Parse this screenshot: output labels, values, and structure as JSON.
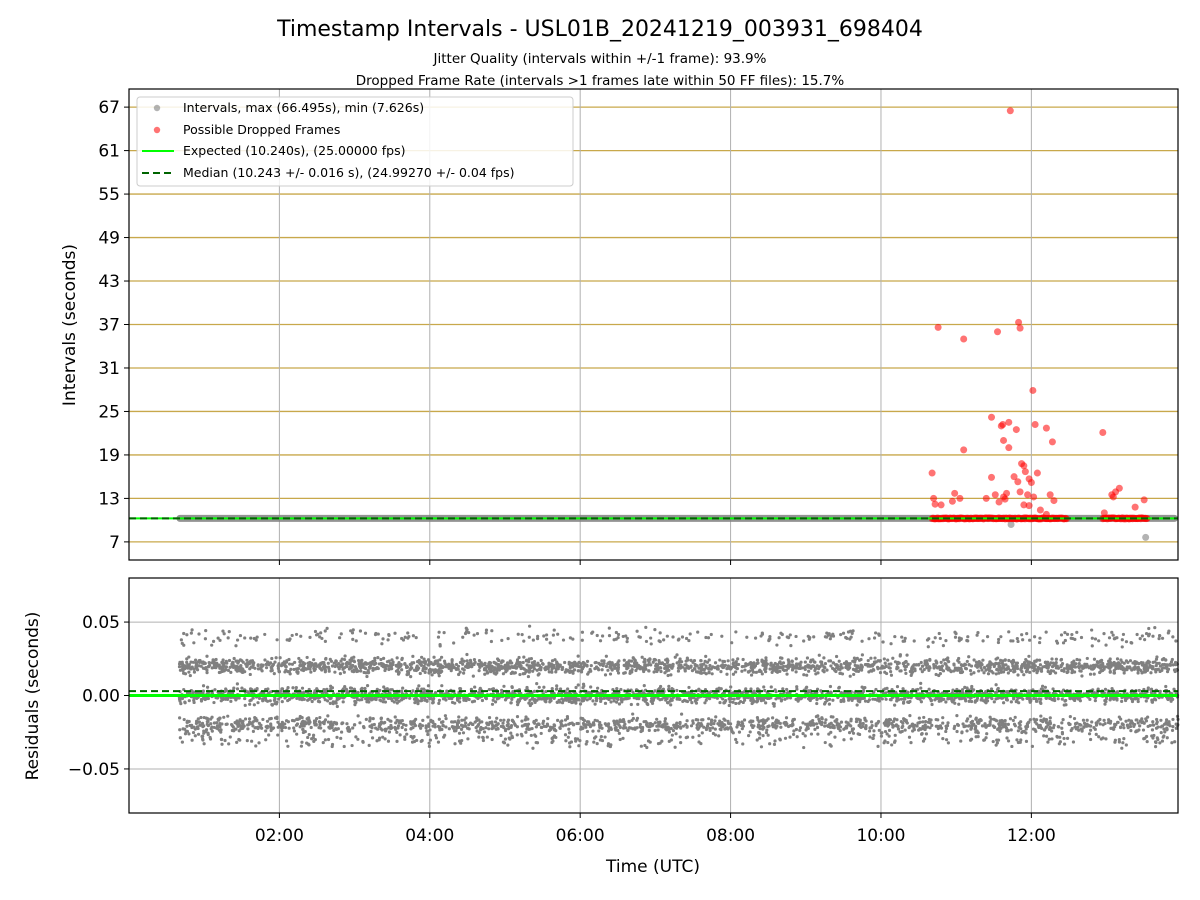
{
  "figure": {
    "title": "Timestamp Intervals - USL01B_20241219_003931_698404",
    "subtitle_1": "Jitter Quality (intervals within +/-1 frame): 93.9%",
    "subtitle_2": "Dropped Frame Rate (intervals >1 frames late within 50 FF files): 15.7%"
  },
  "colors": {
    "intervals": "#808080",
    "dropped": "#ff0000",
    "expected": "#00ff00",
    "median": "#006400",
    "top_grid": "#c8a84b",
    "x_grid": "#b0b0b0"
  },
  "chart_data": [
    {
      "type": "scatter",
      "panel": "top",
      "ylabel": "Intervals (seconds)",
      "ylim": [
        4.5,
        69.5
      ],
      "yticks": [
        7,
        13,
        19,
        25,
        31,
        37,
        43,
        49,
        55,
        61,
        67
      ],
      "ytick_labels": [
        "7",
        "13",
        "19",
        "25",
        "31",
        "37",
        "43",
        "49",
        "55",
        "61",
        "67"
      ],
      "xlim_hours": [
        0.0,
        13.95
      ],
      "xticks_hours": [
        2,
        4,
        6,
        8,
        10,
        12
      ],
      "grid": "horizontal gold + vertical gray",
      "legend_position": "top-left",
      "series": [
        {
          "name": "Intervals, max (66.495s), min (7.626s)",
          "kind": "dense_band",
          "x_start_hours": 0.67,
          "x_end_hours": 13.95,
          "y": 10.24,
          "outliers": [
            [
              11.73,
              9.4
            ],
            [
              13.52,
              7.626
            ]
          ]
        },
        {
          "name": "Possible Dropped Frames",
          "kind": "points",
          "baseline_cluster": {
            "x_start_hours": 10.68,
            "x_end_hours": 12.48,
            "y": 10.24
          },
          "baseline_cluster_2": {
            "x_start_hours": 12.95,
            "x_end_hours": 13.55,
            "y": 10.24
          },
          "points": [
            [
              10.68,
              16.5
            ],
            [
              10.7,
              13.0
            ],
            [
              10.72,
              12.2
            ],
            [
              10.76,
              36.6
            ],
            [
              10.8,
              12.1
            ],
            [
              10.95,
              12.6
            ],
            [
              10.98,
              13.7
            ],
            [
              11.05,
              13.0
            ],
            [
              11.1,
              35.0
            ],
            [
              11.1,
              19.7
            ],
            [
              11.4,
              13.0
            ],
            [
              11.47,
              24.2
            ],
            [
              11.47,
              15.9
            ],
            [
              11.52,
              13.5
            ],
            [
              11.55,
              36.0
            ],
            [
              11.57,
              12.5
            ],
            [
              11.6,
              23.0
            ],
            [
              11.62,
              23.2
            ],
            [
              11.63,
              21.0
            ],
            [
              11.63,
              13.2
            ],
            [
              11.65,
              12.9
            ],
            [
              11.67,
              13.7
            ],
            [
              11.7,
              20.0
            ],
            [
              11.7,
              23.5
            ],
            [
              11.72,
              66.495
            ],
            [
              11.77,
              16.0
            ],
            [
              11.8,
              22.5
            ],
            [
              11.82,
              15.3
            ],
            [
              11.83,
              37.3
            ],
            [
              11.85,
              36.5
            ],
            [
              11.85,
              13.9
            ],
            [
              11.87,
              17.8
            ],
            [
              11.9,
              17.5
            ],
            [
              11.9,
              12.1
            ],
            [
              11.92,
              16.7
            ],
            [
              11.95,
              13.5
            ],
            [
              11.97,
              15.7
            ],
            [
              11.97,
              12.0
            ],
            [
              12.0,
              15.2
            ],
            [
              12.02,
              27.9
            ],
            [
              12.03,
              13.2
            ],
            [
              12.05,
              23.2
            ],
            [
              12.08,
              16.5
            ],
            [
              12.12,
              11.4
            ],
            [
              12.2,
              22.7
            ],
            [
              12.25,
              13.5
            ],
            [
              12.28,
              20.8
            ],
            [
              12.3,
              12.7
            ],
            [
              12.2,
              10.8
            ],
            [
              12.95,
              22.1
            ],
            [
              12.97,
              11.0
            ],
            [
              13.07,
              13.5
            ],
            [
              13.09,
              13.2
            ],
            [
              13.12,
              13.9
            ],
            [
              13.17,
              14.4
            ],
            [
              13.38,
              11.8
            ],
            [
              13.5,
              12.8
            ]
          ]
        },
        {
          "name": "Expected (10.240s), (25.00000 fps)",
          "kind": "hline",
          "y": 10.24
        },
        {
          "name": "Median (10.243 +/- 0.016 s), (24.99270 +/- 0.04 fps)",
          "kind": "dashed_hline",
          "y": 10.243
        }
      ]
    },
    {
      "type": "scatter",
      "panel": "bottom",
      "xlabel": "Time (UTC)",
      "ylabel": "Residuals (seconds)",
      "ylim": [
        -0.08,
        0.08
      ],
      "yticks": [
        -0.05,
        0.0,
        0.05
      ],
      "ytick_labels": [
        "−0.05",
        "0.00",
        "0.05"
      ],
      "xlim_hours": [
        0.0,
        13.95
      ],
      "xticks_hours": [
        2,
        4,
        6,
        8,
        10,
        12
      ],
      "xtick_labels": [
        "02:00",
        "04:00",
        "06:00",
        "08:00",
        "10:00",
        "12:00"
      ],
      "grid": true,
      "series": [
        {
          "name": "residuals",
          "kind": "dense_bands",
          "x_start_hours": 0.67,
          "x_end_hours": 13.95,
          "bands": [
            {
              "y": 0.04,
              "density": 0.05
            },
            {
              "y": 0.02,
              "density": 0.33
            },
            {
              "y": 0.0,
              "density": 0.35
            },
            {
              "y": -0.02,
              "density": 0.22
            },
            {
              "y": -0.03,
              "density": 0.05
            }
          ],
          "spread": 0.006
        },
        {
          "name": "expected",
          "kind": "hline",
          "y": 0.0
        },
        {
          "name": "median",
          "kind": "dashed_hline",
          "y": 0.003
        }
      ]
    }
  ]
}
